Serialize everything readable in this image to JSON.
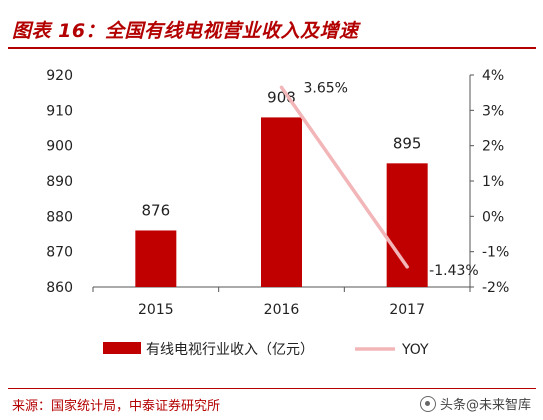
{
  "header": {
    "title": "图表 16：全国有线电视营业收入及增速"
  },
  "footer": {
    "source": "来源：国家统计局，中泰证券研究所",
    "watermark": "头条@未来智库"
  },
  "colors": {
    "bar": "#c00000",
    "line": "#f2b5b8",
    "accent": "#b30000"
  },
  "chart_data": {
    "type": "bar",
    "categories": [
      "2015",
      "2016",
      "2017"
    ],
    "series": [
      {
        "name": "有线电视行业收入（亿元）",
        "type": "bar",
        "axis": "left",
        "values": [
          876,
          908,
          895
        ],
        "labels": [
          "876",
          "908",
          "895"
        ]
      },
      {
        "name": "YOY",
        "type": "line",
        "axis": "right",
        "points": [
          {
            "x": "2016",
            "y": 3.65
          },
          {
            "x": "2017",
            "y": -1.43
          }
        ],
        "labels": [
          "3.65%",
          "-1.43%"
        ]
      }
    ],
    "y_left": {
      "lim": [
        860,
        920
      ],
      "ticks": [
        "860",
        "870",
        "880",
        "890",
        "900",
        "910",
        "920"
      ]
    },
    "y_right": {
      "lim": [
        -2,
        4
      ],
      "ticks": [
        "-2%",
        "-1%",
        "0%",
        "1%",
        "2%",
        "3%",
        "4%"
      ]
    },
    "grid": false,
    "legend": "bottom"
  }
}
